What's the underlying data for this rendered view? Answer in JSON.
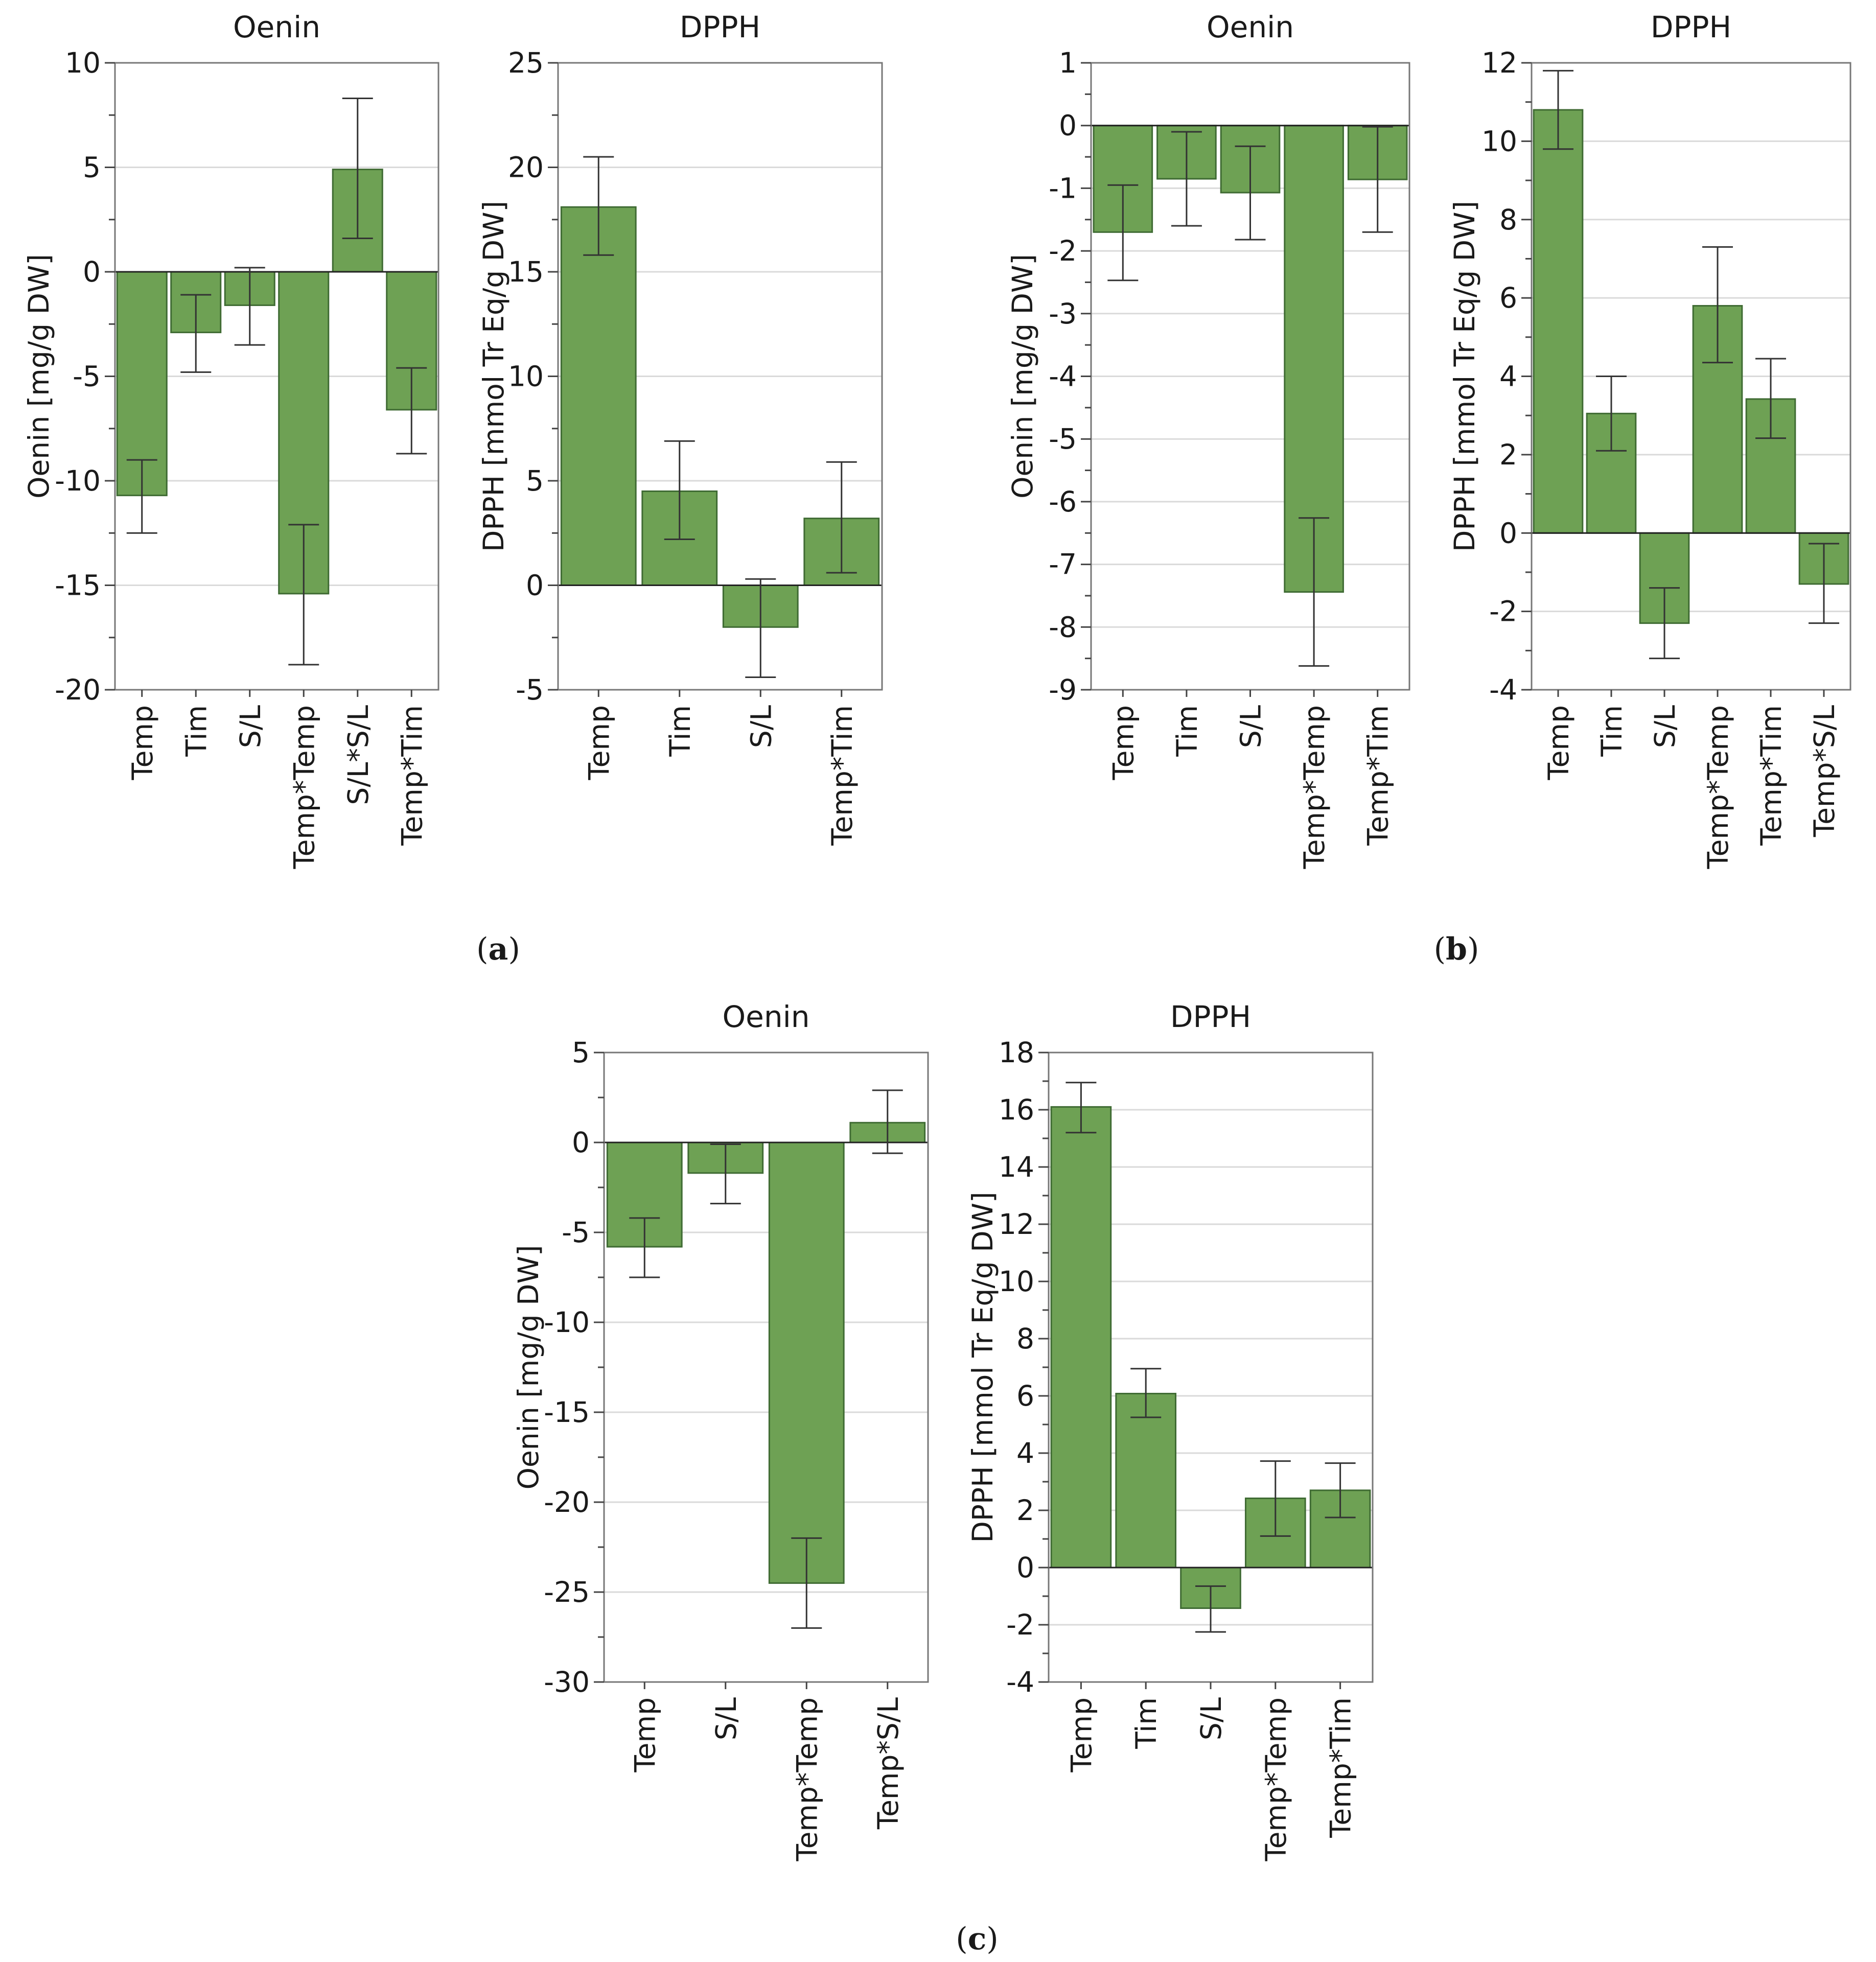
{
  "colors": {
    "bar_fill": "#6ea154",
    "bar_stroke": "#3f6b33",
    "grid": "#dadada",
    "frame": "#777777",
    "error_bar": "#333333"
  },
  "panels": [
    {
      "label": "a",
      "prefix": "(",
      "suffix": ")"
    },
    {
      "label": "b",
      "prefix": "(",
      "suffix": ")"
    },
    {
      "label": "c",
      "prefix": "(",
      "suffix": ")"
    }
  ],
  "chart_data": [
    {
      "id": "a-oenin",
      "panel": "a",
      "type": "bar",
      "title": "Oenin",
      "ylabel": "Oenin [mg/g DW]",
      "ylim": [
        -20,
        10
      ],
      "yticks": [
        -20,
        -15,
        -10,
        -5,
        0,
        5,
        10
      ],
      "yminor": 2.5,
      "ytick_labels": [
        "-20",
        "-15",
        "-10",
        "-5",
        "0",
        "5",
        "10"
      ],
      "categories": [
        "Temp",
        "Tim",
        "S/L",
        "Temp*Temp",
        "S/L*S/L",
        "Temp*Tim"
      ],
      "values": [
        -10.7,
        -2.9,
        -1.6,
        -15.4,
        4.9,
        -6.6
      ],
      "err_low": [
        -12.5,
        -4.8,
        -3.5,
        -18.8,
        1.6,
        -8.7
      ],
      "err_high": [
        -9.0,
        -1.1,
        0.2,
        -12.1,
        8.3,
        -4.6
      ]
    },
    {
      "id": "a-dpph",
      "panel": "a",
      "type": "bar",
      "title": "DPPH",
      "ylabel": "DPPH [mmol Tr Eq/g DW]",
      "ylim": [
        -5,
        25
      ],
      "yticks": [
        -5,
        0,
        5,
        10,
        15,
        20,
        25
      ],
      "yminor": 2.5,
      "ytick_labels": [
        "-5",
        "0",
        "5",
        "10",
        "15",
        "20",
        "25"
      ],
      "categories": [
        "Temp",
        "Tim",
        "S/L",
        "Temp*Tim"
      ],
      "values": [
        18.1,
        4.5,
        -2.0,
        3.2
      ],
      "err_low": [
        15.8,
        2.2,
        -4.4,
        0.6
      ],
      "err_high": [
        20.5,
        6.9,
        0.3,
        5.9
      ]
    },
    {
      "id": "b-oenin",
      "panel": "b",
      "type": "bar",
      "title": "Oenin",
      "ylabel": "Oenin [mg/g DW]",
      "ylim": [
        -9,
        1
      ],
      "yticks": [
        -9,
        -8,
        -7,
        -6,
        -5,
        -4,
        -3,
        -2,
        -1,
        0,
        1
      ],
      "yminor": 0.5,
      "ytick_labels": [
        "-9",
        "-8",
        "-7",
        "-6",
        "-5",
        "-4",
        "-3",
        "-2",
        "-1",
        "0",
        "1"
      ],
      "categories": [
        "Temp",
        "Tim",
        "S/L",
        "Temp*Temp",
        "Temp*Tim"
      ],
      "values": [
        -1.7,
        -0.85,
        -1.07,
        -7.44,
        -0.86
      ],
      "err_low": [
        -2.47,
        -1.6,
        -1.82,
        -8.62,
        -1.7
      ],
      "err_high": [
        -0.95,
        -0.1,
        -0.33,
        -6.26,
        -0.02
      ]
    },
    {
      "id": "b-dpph",
      "panel": "b",
      "type": "bar",
      "title": "DPPH",
      "ylabel": "DPPH [mmol Tr Eq/g DW]",
      "ylim": [
        -4,
        12
      ],
      "yticks": [
        -4,
        -2,
        0,
        2,
        4,
        6,
        8,
        10,
        12
      ],
      "yminor": 1,
      "ytick_labels": [
        "-4",
        "-2",
        "0",
        "2",
        "4",
        "6",
        "8",
        "10",
        "12"
      ],
      "categories": [
        "Temp",
        "Tim",
        "S/L",
        "Temp*Temp",
        "Temp*Tim",
        "Temp*S/L"
      ],
      "values": [
        10.8,
        3.05,
        -2.3,
        5.8,
        3.42,
        -1.3
      ],
      "err_low": [
        9.8,
        2.1,
        -3.2,
        4.35,
        2.42,
        -2.3
      ],
      "err_high": [
        11.8,
        4.0,
        -1.4,
        7.3,
        4.45,
        -0.27
      ]
    },
    {
      "id": "c-oenin",
      "panel": "c",
      "type": "bar",
      "title": "Oenin",
      "ylabel": "Oenin [mg/g DW]",
      "ylim": [
        -30,
        5
      ],
      "yticks": [
        -30,
        -25,
        -20,
        -15,
        -10,
        -5,
        0,
        5
      ],
      "yminor": 2.5,
      "ytick_labels": [
        "-30",
        "-25",
        "-20",
        "-15",
        "-10",
        "-5",
        "0",
        "5"
      ],
      "categories": [
        "Temp",
        "S/L",
        "Temp*Temp",
        "Temp*S/L"
      ],
      "values": [
        -5.8,
        -1.7,
        -24.5,
        1.1
      ],
      "err_low": [
        -7.5,
        -3.4,
        -27.0,
        -0.6
      ],
      "err_high": [
        -4.2,
        -0.1,
        -22.0,
        2.9
      ]
    },
    {
      "id": "c-dpph",
      "panel": "c",
      "type": "bar",
      "title": "DPPH",
      "ylabel": "DPPH [mmol Tr Eq/g DW]",
      "ylim": [
        -4,
        18
      ],
      "yticks": [
        -4,
        -2,
        0,
        2,
        4,
        6,
        8,
        10,
        12,
        14,
        16,
        18
      ],
      "yminor": 1,
      "ytick_labels": [
        "-4",
        "-2",
        "0",
        "2",
        "4",
        "6",
        "8",
        "10",
        "12",
        "14",
        "16",
        "18"
      ],
      "categories": [
        "Temp",
        "Tim",
        "S/L",
        "Temp*Temp",
        "Temp*Tim"
      ],
      "values": [
        16.1,
        6.08,
        -1.42,
        2.42,
        2.7
      ],
      "err_low": [
        15.2,
        5.25,
        -2.25,
        1.1,
        1.75
      ],
      "err_high": [
        16.95,
        6.95,
        -0.65,
        3.72,
        3.65
      ]
    }
  ]
}
